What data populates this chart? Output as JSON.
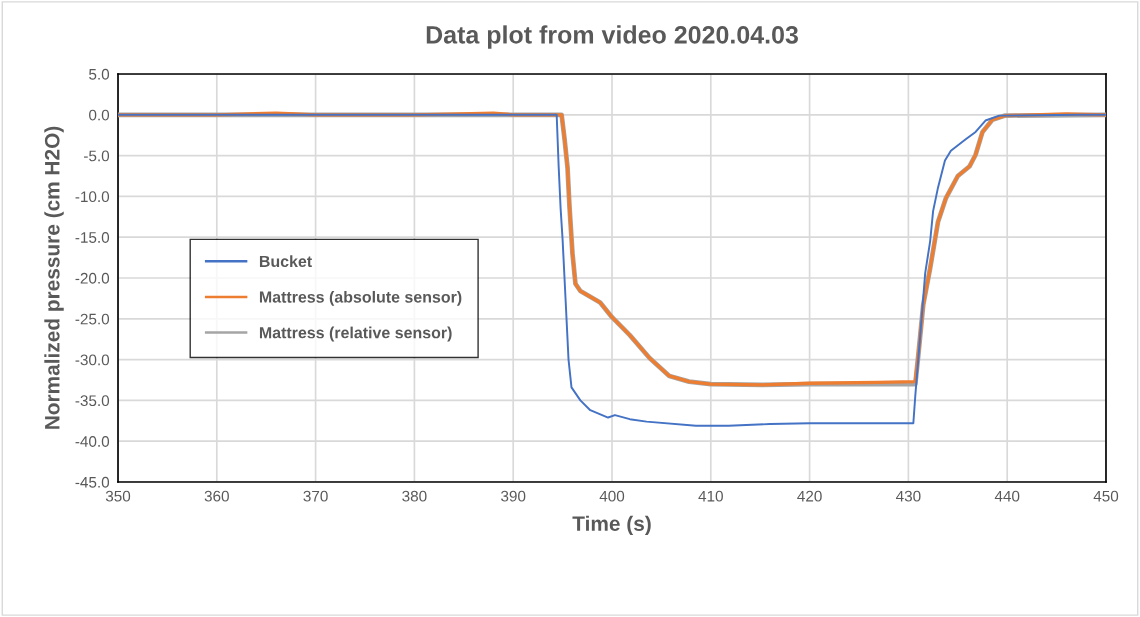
{
  "chart_data": {
    "type": "line",
    "title": "Data plot from video 2020.04.03",
    "xlabel": "Time (s)",
    "ylabel": "Normalized pressure (cm H2O)",
    "xlim": [
      350,
      450
    ],
    "xticks": [
      350,
      360,
      370,
      380,
      390,
      400,
      410,
      420,
      430,
      440,
      450
    ],
    "ylim": [
      -45,
      5
    ],
    "yticks": [
      {
        "value": 5,
        "label": "5.0"
      },
      {
        "value": 0,
        "label": "0.0"
      },
      {
        "value": -5,
        "label": "-5.0"
      },
      {
        "value": -10,
        "label": "-10.0"
      },
      {
        "value": -15,
        "label": "-15.0"
      },
      {
        "value": -20,
        "label": "-20.0"
      },
      {
        "value": -25,
        "label": "-25.0"
      },
      {
        "value": -30,
        "label": "-30.0"
      },
      {
        "value": -35,
        "label": "-35.0"
      },
      {
        "value": -40,
        "label": "-40.0"
      },
      {
        "value": -45,
        "label": "-45.0"
      }
    ],
    "grid": true,
    "legend": "left",
    "marker": "none",
    "line_style": "solid",
    "series": [
      {
        "name": "Bucket",
        "color": "#4472c4",
        "x": [
          350,
          360,
          370,
          380,
          390,
          394.4,
          394.6,
          394.8,
          395.0,
          395.3,
          395.6,
          395.9,
          396.8,
          397.8,
          399.6,
          400.3,
          401.8,
          403.5,
          408.5,
          411.8,
          416,
          420,
          426.9,
          430.5,
          430.7,
          431.2,
          431.7,
          432.2,
          432.5,
          433.0,
          433.7,
          434.3,
          435.8,
          436.8,
          437.8,
          439.2,
          447.2,
          450
        ],
        "values": [
          0,
          0,
          0,
          0,
          0,
          0,
          -6.3,
          -11.5,
          -15.3,
          -22.6,
          -30,
          -33.4,
          -35,
          -36.2,
          -37.1,
          -36.8,
          -37.3,
          -37.6,
          -38.1,
          -38.1,
          -37.9,
          -37.8,
          -37.8,
          -37.8,
          -34.4,
          -27,
          -19.4,
          -15.5,
          -11.8,
          -8.9,
          -5.6,
          -4.4,
          -3.0,
          -2.1,
          -0.7,
          -0.1,
          0,
          0
        ]
      },
      {
        "name": "Mattress (absolute sensor)",
        "color": "#ed7d31",
        "x": [
          350,
          360,
          366,
          368,
          370,
          380,
          388,
          390,
          394.9,
          395.2,
          395.5,
          395.7,
          396.0,
          396.3,
          396.8,
          398.8,
          400,
          401.8,
          403.8,
          405.8,
          407.8,
          410,
          415.2,
          420,
          426.9,
          430.7,
          431.0,
          431.5,
          432.2,
          433.0,
          433.8,
          435.0,
          436.2,
          436.8,
          437.5,
          438.5,
          439.8,
          446,
          450
        ],
        "values": [
          0,
          0,
          0.2,
          0.1,
          0,
          0,
          0.2,
          0,
          0,
          -3,
          -6.5,
          -11.3,
          -17,
          -20.7,
          -21.6,
          -23,
          -24.8,
          -27,
          -29.8,
          -32,
          -32.7,
          -33,
          -33.1,
          -32.9,
          -32.8,
          -32.7,
          -29.5,
          -23.3,
          -18.8,
          -13.1,
          -10.2,
          -7.5,
          -6.3,
          -4.9,
          -2.1,
          -0.6,
          -0.1,
          0.1,
          0
        ]
      },
      {
        "name": "Mattress (relative sensor)",
        "color": "#a5a5a5",
        "x": [
          350,
          360,
          370,
          380,
          390,
          394.9,
          395.2,
          395.5,
          395.7,
          396.0,
          396.3,
          396.8,
          398.8,
          400,
          401.8,
          403.8,
          405.8,
          407.8,
          410,
          415.2,
          420,
          426.9,
          430.7,
          431.0,
          431.5,
          432.2,
          433.0,
          433.8,
          435.0,
          436.2,
          436.8,
          437.5,
          438.5,
          439.8,
          450
        ],
        "values": [
          0,
          0,
          0,
          0,
          0,
          0,
          -3,
          -6.5,
          -11.3,
          -17,
          -20.7,
          -21.6,
          -23,
          -24.8,
          -27,
          -29.8,
          -32,
          -32.7,
          -33,
          -33.1,
          -33,
          -33,
          -33,
          -29.5,
          -23.3,
          -18.8,
          -13.1,
          -10.2,
          -7.5,
          -6.3,
          -4.9,
          -2.1,
          -0.6,
          -0.1,
          0
        ]
      }
    ]
  }
}
